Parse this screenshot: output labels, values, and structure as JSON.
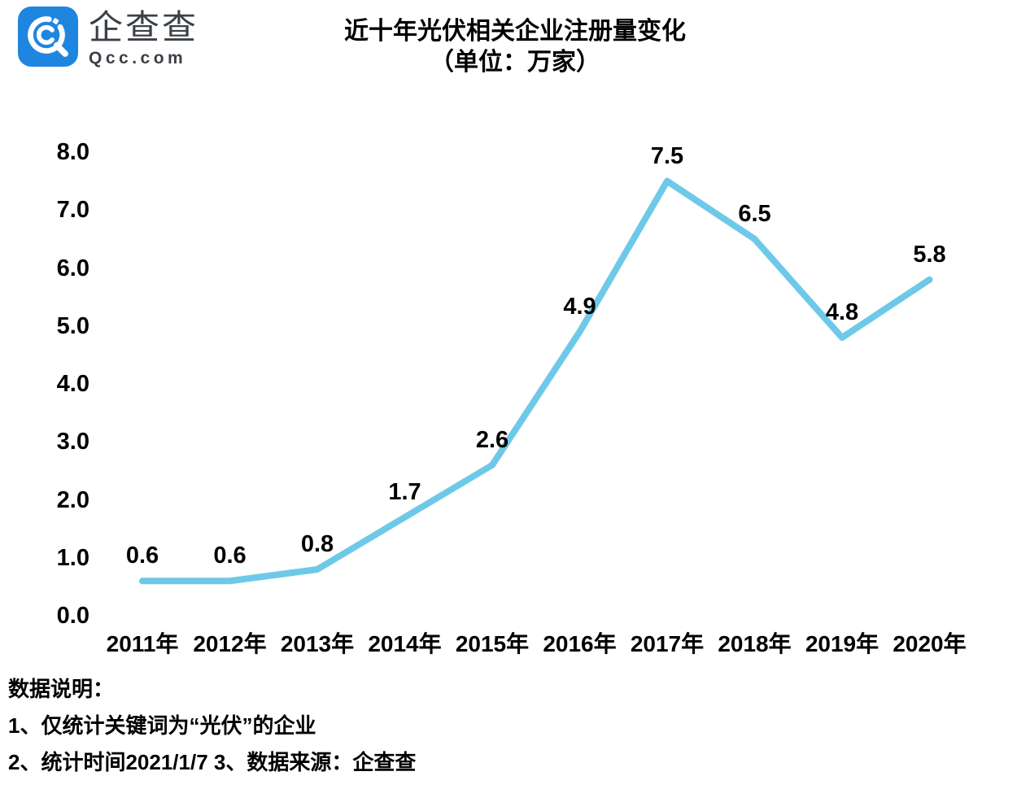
{
  "logo": {
    "brand_cn": "企查查",
    "brand_domain": "Qcc.com",
    "icon_color": "#1f86e0"
  },
  "title": {
    "line1": "近十年光伏相关企业注册量变化",
    "line2": "（单位：万家）"
  },
  "chart_data": {
    "type": "line",
    "title": "近十年光伏相关企业注册量变化",
    "subtitle": "（单位：万家）",
    "unit": "万家",
    "categories": [
      "2011年",
      "2012年",
      "2013年",
      "2014年",
      "2015年",
      "2016年",
      "2017年",
      "2018年",
      "2019年",
      "2020年"
    ],
    "values": [
      0.6,
      0.6,
      0.8,
      1.7,
      2.6,
      4.9,
      7.5,
      6.5,
      4.8,
      5.8
    ],
    "yticks": [
      8,
      7,
      6,
      5,
      4,
      3,
      2,
      1,
      0
    ],
    "ylim": [
      0,
      8
    ],
    "xlabel": "",
    "ylabel": "",
    "grid": false,
    "legend": "none",
    "line_color": "#6ec9e9",
    "label_color": "#000000"
  },
  "notes": {
    "heading": "数据说明：",
    "line1": "1、仅统计关键词为“光伏”的企业",
    "line2": "2、统计时间2021/1/7  3、数据来源：企查查"
  }
}
